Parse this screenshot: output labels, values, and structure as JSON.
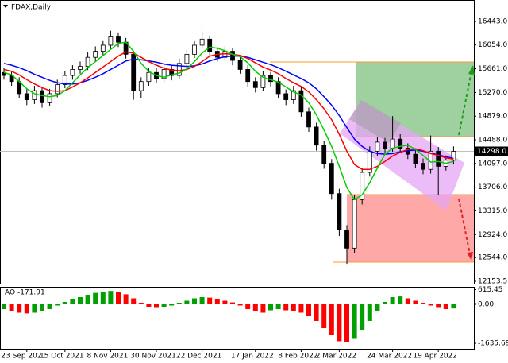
{
  "chart_data": {
    "type": "candlestick",
    "title": "FDAX,Daily",
    "categories": [
      null,
      null,
      null,
      "23 Sep 2021",
      null,
      null,
      null,
      null,
      "15 Oct 2021",
      null,
      null,
      null,
      null,
      null,
      "8 Nov 2021",
      null,
      null,
      null,
      null,
      null,
      "30 Nov 2021",
      null,
      null,
      null,
      null,
      null,
      "22 Dec 2021",
      null,
      null,
      null,
      null,
      null,
      null,
      "17 Jan 2022",
      null,
      null,
      null,
      null,
      null,
      "8 Feb 2022",
      null,
      null,
      null,
      null,
      "2 Mar 2022",
      null,
      null,
      null,
      null,
      null,
      null,
      "24 Mar 2022",
      null,
      null,
      null,
      null,
      null,
      "19 Apr 2022",
      null,
      null
    ],
    "open": [
      15600,
      15550,
      15450,
      15250,
      15150,
      15300,
      15100,
      15250,
      15400,
      15550,
      15650,
      15700,
      15850,
      15950,
      16050,
      16200,
      16100,
      15900,
      15300,
      15450,
      15600,
      15500,
      15650,
      15550,
      15750,
      15900,
      16050,
      16150,
      15950,
      15850,
      15950,
      15800,
      15650,
      15450,
      15350,
      15550,
      15450,
      15250,
      15150,
      15300,
      14950,
      14700,
      14400,
      14100,
      13600,
      13000,
      12700,
      13500,
      13950,
      14300,
      14450,
      14350,
      14500,
      14350,
      14250,
      14100,
      14000,
      14300,
      14050,
      14150
    ],
    "high": [
      15680,
      15620,
      15520,
      15330,
      15380,
      15360,
      15330,
      15480,
      15630,
      15720,
      15780,
      15930,
      16030,
      16130,
      16290,
      16260,
      16170,
      15960,
      15520,
      15680,
      15670,
      15730,
      15710,
      15830,
      15980,
      16130,
      16280,
      16210,
      16020,
      16030,
      16010,
      15870,
      15720,
      15520,
      15630,
      15610,
      15520,
      15320,
      15380,
      15370,
      15020,
      14770,
      14470,
      14170,
      13680,
      13080,
      13580,
      14030,
      14380,
      14530,
      14520,
      14880,
      14580,
      14430,
      14330,
      14180,
      14560,
      14370,
      14230,
      14380
    ],
    "low": [
      15480,
      15380,
      15170,
      15060,
      15080,
      15020,
      15040,
      15190,
      15340,
      15480,
      15580,
      15640,
      15780,
      15880,
      15990,
      16020,
      15830,
      15150,
      15180,
      15380,
      15420,
      15440,
      15470,
      15490,
      15690,
      15840,
      15990,
      15880,
      15780,
      15790,
      15720,
      15580,
      15370,
      15270,
      15290,
      15370,
      15170,
      15060,
      15080,
      14870,
      14620,
      14310,
      14010,
      13500,
      12900,
      12440,
      12620,
      13420,
      13880,
      14220,
      14270,
      14290,
      14270,
      14170,
      14020,
      13920,
      13930,
      13580,
      13980,
      14080
    ],
    "close": [
      15550,
      15450,
      15250,
      15150,
      15300,
      15100,
      15250,
      15400,
      15550,
      15650,
      15700,
      15850,
      15950,
      16050,
      16200,
      16100,
      15900,
      15300,
      15450,
      15600,
      15500,
      15650,
      15550,
      15750,
      15900,
      16050,
      16150,
      15950,
      15850,
      15950,
      15800,
      15650,
      15450,
      15350,
      15550,
      15450,
      15250,
      15150,
      15300,
      14950,
      14700,
      14400,
      14100,
      13600,
      13000,
      12700,
      13500,
      13950,
      14300,
      14450,
      14350,
      14500,
      14350,
      14250,
      14100,
      14000,
      14300,
      14050,
      14150,
      14298
    ],
    "series": [
      {
        "color": "#0000ff",
        "values": [
          15750,
          15720,
          15680,
          15630,
          15570,
          15520,
          15470,
          15430,
          15410,
          15410,
          15430,
          15470,
          15520,
          15580,
          15650,
          15720,
          15790,
          15820,
          15810,
          15790,
          15770,
          15740,
          15720,
          15710,
          15700,
          15710,
          15740,
          15790,
          15830,
          15860,
          15870,
          15870,
          15850,
          15810,
          15770,
          15730,
          15680,
          15620,
          15560,
          15500,
          15430,
          15330,
          15200,
          15060,
          14890,
          14690,
          14500,
          14380,
          14300,
          14260,
          14250,
          14260,
          14290,
          14310,
          14320,
          14300,
          14270,
          14240,
          14210,
          14180
        ]
      },
      {
        "color": "#ff0000",
        "values": [
          15650,
          15620,
          15560,
          15480,
          15410,
          15350,
          15300,
          15290,
          15300,
          15360,
          15430,
          15510,
          15600,
          15690,
          15780,
          15870,
          15940,
          15920,
          15850,
          15780,
          15720,
          15670,
          15640,
          15630,
          15650,
          15700,
          15780,
          15870,
          15900,
          15910,
          15900,
          15880,
          15830,
          15760,
          15690,
          15640,
          15580,
          15500,
          15430,
          15370,
          15280,
          15150,
          15000,
          14820,
          14580,
          14300,
          14080,
          14000,
          14000,
          14050,
          14130,
          14220,
          14280,
          14330,
          14340,
          14310,
          14260,
          14230,
          14190,
          14170
        ]
      },
      {
        "color": "#00cc00",
        "values": [
          15600,
          15560,
          15450,
          15330,
          15250,
          15220,
          15200,
          15220,
          15300,
          15430,
          15560,
          15680,
          15780,
          15880,
          15980,
          16080,
          16100,
          15950,
          15750,
          15620,
          15550,
          15520,
          15560,
          15590,
          15660,
          15780,
          15920,
          16020,
          16000,
          15960,
          15900,
          15860,
          15760,
          15620,
          15520,
          15480,
          15440,
          15360,
          15280,
          15230,
          15100,
          14900,
          14650,
          14380,
          14050,
          13700,
          13500,
          13580,
          13780,
          14020,
          14250,
          14350,
          14380,
          14400,
          14330,
          14230,
          14120,
          14130,
          14100,
          14130
        ]
      }
    ],
    "ylim": [
      12114,
      16797
    ],
    "yticks": [
      {
        "value": 16443,
        "label": "16443.0"
      },
      {
        "value": 16054,
        "label": "16054.0"
      },
      {
        "value": 15661,
        "label": "15661.0"
      },
      {
        "value": 15270,
        "label": "15270.0"
      },
      {
        "value": 14879,
        "label": "14879.0"
      },
      {
        "value": 14488,
        "label": "14488.0"
      },
      {
        "value": 14097,
        "label": "14097.0"
      },
      {
        "value": 13706,
        "label": "13706.0"
      },
      {
        "value": 13315,
        "label": "13315.0"
      },
      {
        "value": 12924,
        "label": "12924.0"
      },
      {
        "value": 12544,
        "label": "12544.0"
      },
      {
        "value": 12153.5,
        "label": "12153.5"
      }
    ],
    "last_price_label": "14298.0",
    "indicator": {
      "title": "AO -171.91",
      "up_color": "#00a000",
      "down_color": "#ff0000",
      "values": [
        -200,
        -280,
        -350,
        -380,
        -350,
        -300,
        -200,
        -50,
        100,
        200,
        300,
        400,
        480,
        520,
        560,
        520,
        420,
        250,
        50,
        -100,
        -150,
        -120,
        -50,
        50,
        150,
        250,
        300,
        280,
        220,
        150,
        80,
        -50,
        -200,
        -300,
        -350,
        -250,
        -200,
        -250,
        -300,
        -350,
        -500,
        -700,
        -1000,
        -1300,
        -1550,
        -1600,
        -1450,
        -1100,
        -700,
        -300,
        100,
        300,
        330,
        250,
        150,
        50,
        -50,
        -150,
        -200,
        -172
      ],
      "ylim": [
        -1900,
        700
      ],
      "yticks": [
        615.45,
        {
          "value": 0,
          "label": "0.00"
        },
        -1635.69
      ]
    }
  }
}
